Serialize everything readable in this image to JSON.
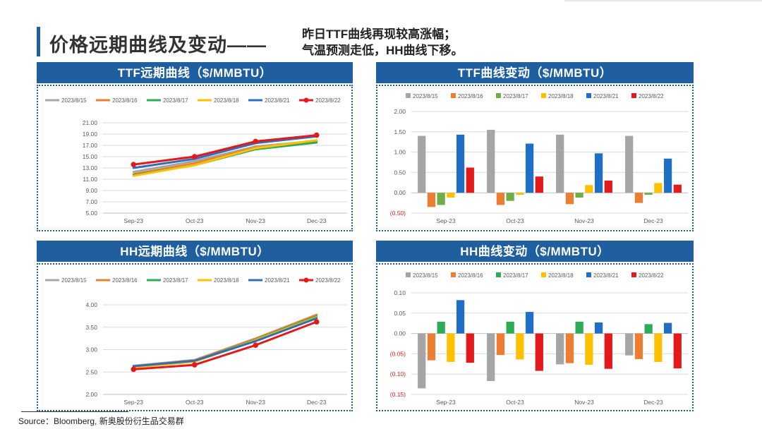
{
  "header": {
    "title": "价格远期曲线及变动——",
    "subtitle_line1": "昨日TTF曲线再现较高涨幅；",
    "subtitle_line2": "气温预测走低，HH曲线下移。"
  },
  "source": "Source：Bloomberg, 新奥股份衍生品交易群",
  "chart_data": [
    {
      "id": "ttf_curve",
      "type": "line",
      "title": "TTF远期曲线（$/MMBTU）",
      "categories": [
        "Sep-23",
        "Oct-23",
        "Nov-23",
        "Dec-23"
      ],
      "ylim": [
        5,
        21
      ],
      "yticks": [
        "5.00",
        "7.00",
        "9.00",
        "11.00",
        "13.00",
        "15.00",
        "17.00",
        "19.00",
        "21.00"
      ],
      "grid": true,
      "legend": "top",
      "series": [
        {
          "name": "2023/8/15",
          "color": "#a5a5a5",
          "values": [
            12.3,
            14.2,
            16.8,
            17.8
          ]
        },
        {
          "name": "2023/8/16",
          "color": "#ed7d31",
          "values": [
            11.9,
            13.8,
            16.6,
            17.7
          ]
        },
        {
          "name": "2023/8/17",
          "color": "#2eab58",
          "values": [
            11.7,
            13.5,
            16.3,
            17.5
          ]
        },
        {
          "name": "2023/8/18",
          "color": "#ffc000",
          "values": [
            11.6,
            13.5,
            16.5,
            17.9
          ]
        },
        {
          "name": "2023/8/21",
          "color": "#2f6fb8",
          "values": [
            13.0,
            14.6,
            17.4,
            18.6
          ]
        },
        {
          "name": "2023/8/22",
          "color": "#e31a1c",
          "marker": true,
          "values": [
            13.6,
            15.0,
            17.7,
            18.8
          ]
        }
      ]
    },
    {
      "id": "ttf_change",
      "type": "bar",
      "title": "TTF曲线变动（$/MMBTU）",
      "categories": [
        "Sep-23",
        "Oct-23",
        "Nov-23",
        "Dec-23"
      ],
      "ylim": [
        -0.5,
        2.0
      ],
      "yticks": [
        "(0.50)",
        "0.00",
        "0.50",
        "1.00",
        "1.50",
        "2.00"
      ],
      "negative_tick_color": "#e31a1c",
      "grid": true,
      "legend": "top",
      "series": [
        {
          "name": "2023/8/15",
          "color": "#a5a5a5",
          "values": [
            1.4,
            1.55,
            1.43,
            1.4
          ]
        },
        {
          "name": "2023/8/16",
          "color": "#ed7d31",
          "values": [
            -0.35,
            -0.3,
            -0.28,
            -0.25
          ]
        },
        {
          "name": "2023/8/17",
          "color": "#70ad47",
          "values": [
            -0.3,
            -0.2,
            -0.12,
            -0.05
          ]
        },
        {
          "name": "2023/8/18",
          "color": "#ffc000",
          "values": [
            -0.12,
            -0.05,
            0.19,
            0.24
          ]
        },
        {
          "name": "2023/8/21",
          "color": "#1f6fc6",
          "values": [
            1.43,
            1.21,
            0.97,
            0.84
          ]
        },
        {
          "name": "2023/8/22",
          "color": "#e31a1c",
          "values": [
            0.62,
            0.4,
            0.3,
            0.2
          ]
        }
      ]
    },
    {
      "id": "hh_curve",
      "type": "line",
      "title": "HH远期曲线（$/MMBTU）",
      "categories": [
        "Sep-23",
        "Oct-23",
        "Nov-23",
        "Dec-23"
      ],
      "ylim": [
        2.0,
        4.0
      ],
      "yticks": [
        "2.00",
        "2.50",
        "3.00",
        "3.50",
        "4.00"
      ],
      "grid": true,
      "legend": "top",
      "series": [
        {
          "name": "2023/8/15",
          "color": "#a5a5a5",
          "values": [
            2.64,
            2.77,
            3.25,
            3.78
          ]
        },
        {
          "name": "2023/8/16",
          "color": "#ed7d31",
          "values": [
            2.63,
            2.76,
            3.24,
            3.77
          ]
        },
        {
          "name": "2023/8/17",
          "color": "#2eab58",
          "values": [
            2.61,
            2.74,
            3.22,
            3.74
          ]
        },
        {
          "name": "2023/8/18",
          "color": "#ffc000",
          "values": [
            2.6,
            2.73,
            3.21,
            3.72
          ]
        },
        {
          "name": "2023/8/21",
          "color": "#2f6fb8",
          "values": [
            2.63,
            2.75,
            3.19,
            3.7
          ]
        },
        {
          "name": "2023/8/22",
          "color": "#e31a1c",
          "marker": true,
          "values": [
            2.56,
            2.66,
            3.1,
            3.62
          ]
        }
      ]
    },
    {
      "id": "hh_change",
      "type": "bar",
      "title": "HH曲线变动（$/MMBTU）",
      "categories": [
        "Sep-23",
        "Oct-23",
        "Nov-23",
        "Dec-23"
      ],
      "ylim": [
        -0.15,
        0.1
      ],
      "yticks": [
        "(0.15)",
        "(0.10)",
        "(0.05)",
        "0.00",
        "0.05",
        "0.10"
      ],
      "negative_tick_color": "#e31a1c",
      "grid": true,
      "legend": "top",
      "series": [
        {
          "name": "2023/8/15",
          "color": "#a5a5a5",
          "values": [
            -0.135,
            -0.117,
            -0.076,
            -0.054
          ]
        },
        {
          "name": "2023/8/16",
          "color": "#ed7d31",
          "values": [
            -0.066,
            -0.053,
            -0.073,
            -0.063
          ]
        },
        {
          "name": "2023/8/17",
          "color": "#2eab58",
          "values": [
            0.029,
            0.029,
            0.029,
            0.023
          ]
        },
        {
          "name": "2023/8/18",
          "color": "#ffc000",
          "values": [
            -0.07,
            -0.064,
            -0.077,
            -0.07
          ]
        },
        {
          "name": "2023/8/21",
          "color": "#1f6fc6",
          "values": [
            0.082,
            0.053,
            0.027,
            0.026
          ]
        },
        {
          "name": "2023/8/22",
          "color": "#e31a1c",
          "values": [
            -0.072,
            -0.092,
            -0.087,
            -0.086
          ]
        }
      ]
    }
  ]
}
